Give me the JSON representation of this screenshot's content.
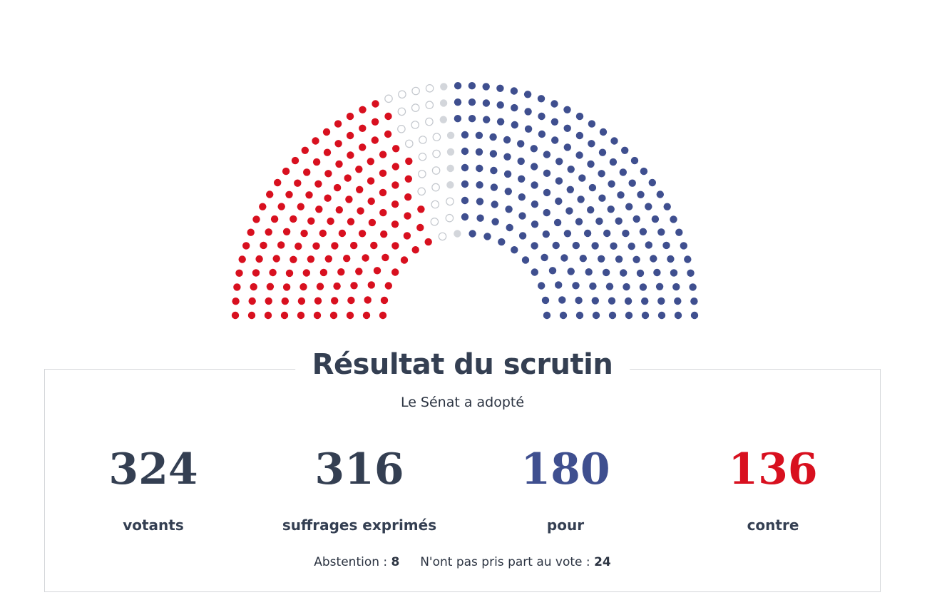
{
  "colors": {
    "pour": "#3f4f8f",
    "contre": "#d8101f",
    "abstention": "#d3d6db",
    "absent_stroke": "#c3c7cd"
  },
  "hemicycle": {
    "total_seats": 348,
    "counts": {
      "pour": 180,
      "contre": 136,
      "abstention": 8,
      "absent": 24
    }
  },
  "results": {
    "title": "Résultat du scrutin",
    "subtitle": "Le Sénat a adopté",
    "stats": [
      {
        "value": "324",
        "label": "votants"
      },
      {
        "value": "316",
        "label": "suffrages exprimés"
      },
      {
        "value": "180",
        "label": "pour"
      },
      {
        "value": "136",
        "label": "contre"
      }
    ],
    "abstention_label": "Abstention :",
    "abstention_value": "8",
    "absent_label": "N'ont pas pris part au vote :",
    "absent_value": "24"
  }
}
